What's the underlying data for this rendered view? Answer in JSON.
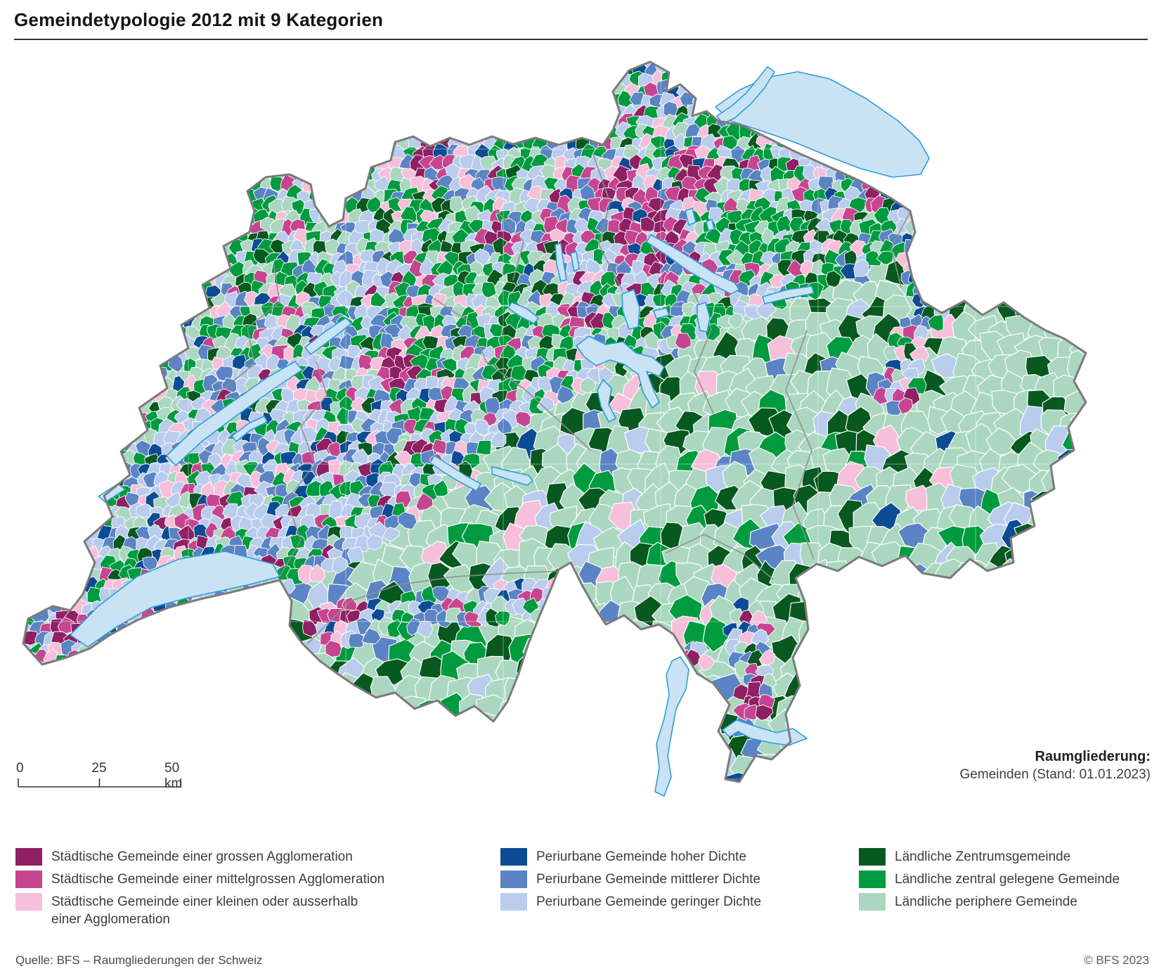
{
  "title": "Gemeindetypologie 2012 mit 9 Kategorien",
  "scalebar": {
    "label_0": "0",
    "label_25": "25",
    "label_50": "50 km"
  },
  "annotation": {
    "title": "Raumgliederung:",
    "subtitle": "Gemeinden (Stand: 01.01.2023)"
  },
  "legend": {
    "columns": [
      {
        "items": [
          {
            "key": "p1",
            "label": "Städtische Gemeinde einer grossen Agglomeration",
            "color": "#8E2063"
          },
          {
            "key": "p2",
            "label": "Städtische Gemeinde einer mittelgrossen Agglomeration",
            "color": "#C64591"
          },
          {
            "key": "p3",
            "label": "Städtische Gemeinde einer kleinen oder ausserhalb einer Agglomeration",
            "color": "#F6BFDA"
          }
        ]
      },
      {
        "items": [
          {
            "key": "b1",
            "label": "Periurbane Gemeinde hoher Dichte",
            "color": "#0D4C94"
          },
          {
            "key": "b2",
            "label": "Periurbane Gemeinde mittlerer Dichte",
            "color": "#5B84C4"
          },
          {
            "key": "b3",
            "label": "Periurbane Gemeinde geringer Dichte",
            "color": "#B9CCEC"
          }
        ]
      },
      {
        "items": [
          {
            "key": "g1",
            "label": "Ländliche Zentrumsgemeinde",
            "color": "#07591F"
          },
          {
            "key": "g2",
            "label": "Ländliche zentral gelegene Gemeinde",
            "color": "#009B3F"
          },
          {
            "key": "g3",
            "label": "Ländliche periphere Gemeinde",
            "color": "#ABD7C0"
          }
        ]
      }
    ]
  },
  "footer": {
    "source": "Quelle: BFS – Raumgliederungen der Schweiz",
    "copyright": "© BFS 2023"
  },
  "map_colors": {
    "lake_fill": "#C9E3F5",
    "lake_stroke": "#2E9CD9",
    "country_border": "#7B7B7B",
    "canton_border": "#8E8E8E",
    "base_fill": "#ABD7C0"
  }
}
